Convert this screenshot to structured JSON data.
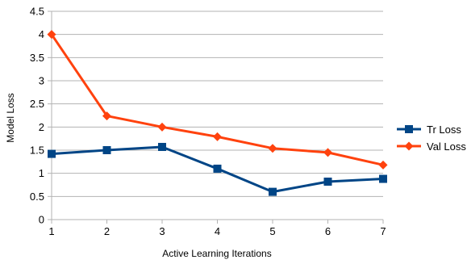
{
  "chart_data": {
    "type": "line",
    "title": "",
    "xlabel": "Active Learning Iterations",
    "ylabel": "Model Loss",
    "x": [
      1,
      2,
      3,
      4,
      5,
      6,
      7
    ],
    "x_tick_labels": [
      "1",
      "2",
      "3",
      "4",
      "5",
      "6",
      "7"
    ],
    "ylim": [
      0,
      4.5
    ],
    "y_ticks": [
      0,
      0.5,
      1,
      1.5,
      2,
      2.5,
      3,
      3.5,
      4,
      4.5
    ],
    "y_tick_labels": [
      "0",
      "0.5",
      "1",
      "1.5",
      "2",
      "2.5",
      "3",
      "3.5",
      "4",
      "4.5"
    ],
    "grid": "horizontal",
    "legend_position": "right",
    "series": [
      {
        "name": "Tr Loss",
        "values": [
          1.42,
          1.5,
          1.57,
          1.1,
          0.6,
          0.82,
          0.88
        ],
        "color": "#004586",
        "marker": "square"
      },
      {
        "name": "Val Loss",
        "values": [
          4.0,
          2.24,
          2.0,
          1.79,
          1.54,
          1.45,
          1.18
        ],
        "color": "#ff420e",
        "marker": "diamond"
      }
    ]
  }
}
